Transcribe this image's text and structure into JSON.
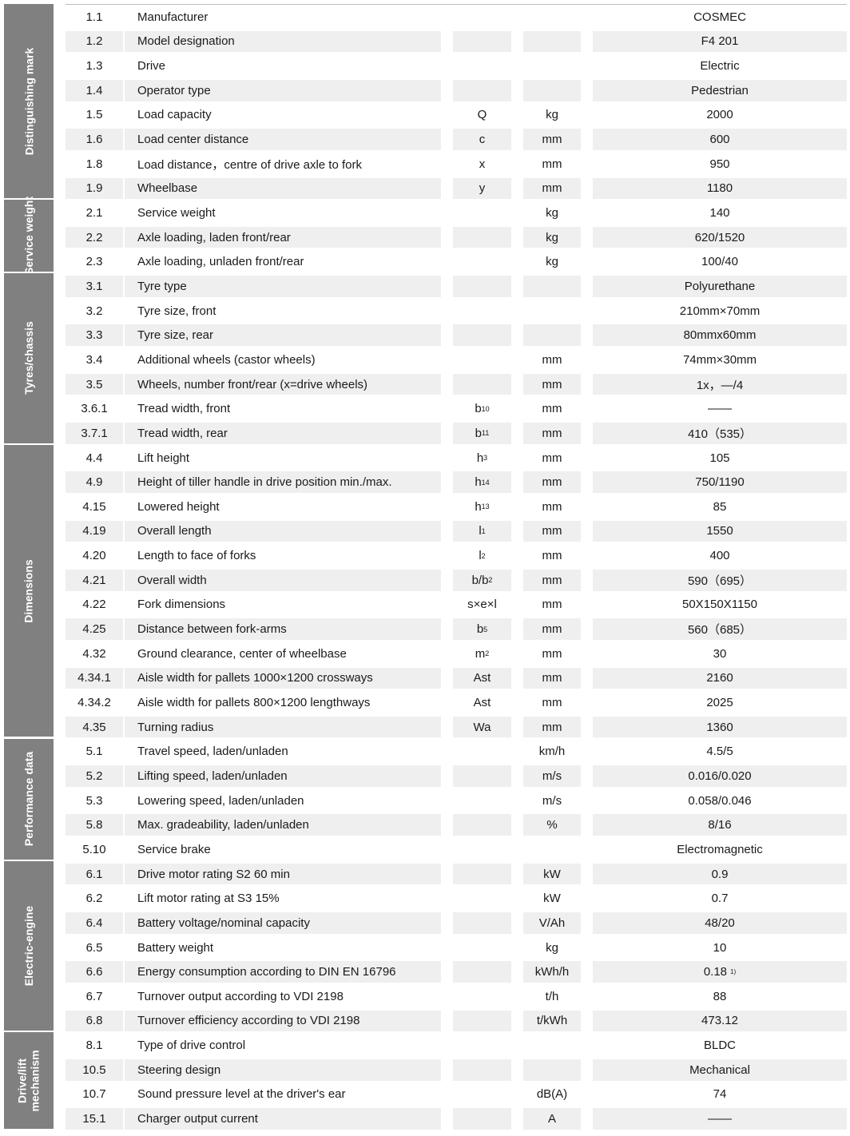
{
  "groups": [
    {
      "label": "Distinguishing mark",
      "rows": 8
    },
    {
      "label": "Service weight",
      "rows": 3
    },
    {
      "label": "Tyres/chassis",
      "rows": 7
    },
    {
      "label": "Dimensions",
      "rows": 12
    },
    {
      "label": "Performance data",
      "rows": 5
    },
    {
      "label": "Electric-engine",
      "rows": 7
    },
    {
      "label": "Drive/lift mechanism",
      "rows": 4
    }
  ],
  "rows": [
    {
      "no": "1.1",
      "desc": "Manufacturer",
      "sym": "",
      "sub": "",
      "unit": "",
      "value": "COSMEC"
    },
    {
      "no": "1.2",
      "desc": "Model designation",
      "sym": "",
      "sub": "",
      "unit": "",
      "value": "F4 201"
    },
    {
      "no": "1.3",
      "desc": "Drive",
      "sym": "",
      "sub": "",
      "unit": "",
      "value": "Electric"
    },
    {
      "no": "1.4",
      "desc": "Operator type",
      "sym": "",
      "sub": "",
      "unit": "",
      "value": "Pedestrian"
    },
    {
      "no": "1.5",
      "desc": "Load capacity",
      "sym": "Q",
      "sub": "",
      "unit": "kg",
      "value": "2000"
    },
    {
      "no": "1.6",
      "desc": "Load center distance",
      "sym": "c",
      "sub": "",
      "unit": "mm",
      "value": "600"
    },
    {
      "no": "1.8",
      "desc": "Load distance，centre of drive axle to fork",
      "sym": "x",
      "sub": "",
      "unit": "mm",
      "value": "950"
    },
    {
      "no": "1.9",
      "desc": "Wheelbase",
      "sym": "y",
      "sub": "",
      "unit": "mm",
      "value": "1180"
    },
    {
      "no": "2.1",
      "desc": "Service weight",
      "sym": "",
      "sub": "",
      "unit": "kg",
      "value": "140"
    },
    {
      "no": "2.2",
      "desc": "Axle loading, laden front/rear",
      "sym": "",
      "sub": "",
      "unit": "kg",
      "value": "620/1520"
    },
    {
      "no": "2.3",
      "desc": "Axle loading, unladen front/rear",
      "sym": "",
      "sub": "",
      "unit": "kg",
      "value": "100/40"
    },
    {
      "no": "3.1",
      "desc": "Tyre type",
      "sym": "",
      "sub": "",
      "unit": "",
      "value": "Polyurethane"
    },
    {
      "no": "3.2",
      "desc": "Tyre size, front",
      "sym": "",
      "sub": "",
      "unit": "",
      "value": "210mm×70mm"
    },
    {
      "no": "3.3",
      "desc": "Tyre size, rear",
      "sym": "",
      "sub": "",
      "unit": "",
      "value": "80mmx60mm"
    },
    {
      "no": "3.4",
      "desc": "Additional wheels (castor wheels)",
      "sym": "",
      "sub": "",
      "unit": "mm",
      "value": "74mm×30mm"
    },
    {
      "no": "3.5",
      "desc": "Wheels, number front/rear (x=drive wheels)",
      "sym": "",
      "sub": "",
      "unit": "mm",
      "value": "1x，—/4"
    },
    {
      "no": "3.6.1",
      "desc": "Tread width, front",
      "sym": "b",
      "sub": "10",
      "unit": "mm",
      "value": "——"
    },
    {
      "no": "3.7.1",
      "desc": "Tread width, rear",
      "sym": "b",
      "sub": "11",
      "unit": "mm",
      "value": "410（535）"
    },
    {
      "no": "4.4",
      "desc": "Lift height",
      "sym": "h",
      "sub": "3",
      "unit": "mm",
      "value": "105"
    },
    {
      "no": "4.9",
      "desc": "Height of tiller handle in drive position min./max.",
      "sym": "h",
      "sub": "14",
      "unit": "mm",
      "value": "750/1190"
    },
    {
      "no": "4.15",
      "desc": "Lowered height",
      "sym": "h",
      "sub": "13",
      "unit": "mm",
      "value": "85"
    },
    {
      "no": "4.19",
      "desc": "Overall length",
      "sym": "l",
      "sub": "1",
      "unit": "mm",
      "value": "1550"
    },
    {
      "no": "4.20",
      "desc": "Length to face of forks",
      "sym": "l",
      "sub": "2",
      "unit": "mm",
      "value": "400"
    },
    {
      "no": "4.21",
      "desc": "Overall width",
      "sym": "b/b",
      "sub": "2",
      "unit": "mm",
      "value": "590（695）"
    },
    {
      "no": "4.22",
      "desc": "Fork dimensions",
      "sym": "s×e×l",
      "sub": "",
      "unit": "mm",
      "value": "50X150X1150"
    },
    {
      "no": "4.25",
      "desc": "Distance between fork-arms",
      "sym": "b",
      "sub": "5",
      "unit": "mm",
      "value": "560（685）"
    },
    {
      "no": "4.32",
      "desc": "Ground clearance, center of wheelbase",
      "sym": "m",
      "sub": "2",
      "unit": "mm",
      "value": "30"
    },
    {
      "no": "4.34.1",
      "desc": "Aisle width for pallets 1000×1200 crossways",
      "sym": "Ast",
      "sub": "",
      "unit": "mm",
      "value": "2160"
    },
    {
      "no": "4.34.2",
      "desc": "Aisle width for pallets 800×1200 lengthways",
      "sym": "Ast",
      "sub": "",
      "unit": "mm",
      "value": "2025"
    },
    {
      "no": "4.35",
      "desc": "Turning radius",
      "sym": "Wa",
      "sub": "",
      "unit": "mm",
      "value": "1360"
    },
    {
      "no": "5.1",
      "desc": "Travel speed, laden/unladen",
      "sym": "",
      "sub": "",
      "unit": "km/h",
      "value": "4.5/5"
    },
    {
      "no": "5.2",
      "desc": "Lifting speed, laden/unladen",
      "sym": "",
      "sub": "",
      "unit": "m/s",
      "value": "0.016/0.020"
    },
    {
      "no": "5.3",
      "desc": "Lowering speed, laden/unladen",
      "sym": "",
      "sub": "",
      "unit": "m/s",
      "value": "0.058/0.046"
    },
    {
      "no": "5.8",
      "desc": "Max. gradeability, laden/unladen",
      "sym": "",
      "sub": "",
      "unit": "%",
      "value": "8/16"
    },
    {
      "no": "5.10",
      "desc": "Service brake",
      "sym": "",
      "sub": "",
      "unit": "",
      "value": "Electromagnetic"
    },
    {
      "no": "6.1",
      "desc": "Drive motor rating S2 60 min",
      "sym": "",
      "sub": "",
      "unit": "kW",
      "value": "0.9"
    },
    {
      "no": "6.2",
      "desc": "Lift motor rating at S3 15%",
      "sym": "",
      "sub": "",
      "unit": "kW",
      "value": "0.7"
    },
    {
      "no": "6.4",
      "desc": "Battery voltage/nominal capacity",
      "sym": "",
      "sub": "",
      "unit": "V/Ah",
      "value": "48/20"
    },
    {
      "no": "6.5",
      "desc": "Battery weight",
      "sym": "",
      "sub": "",
      "unit": "kg",
      "value": "10"
    },
    {
      "no": "6.6",
      "desc": "Energy consumption according to DIN EN 16796",
      "sym": "",
      "sub": "",
      "unit": "kWh/h",
      "value": "0.18",
      "note": "1)"
    },
    {
      "no": "6.7",
      "desc": "Turnover output according to VDI 2198",
      "sym": "",
      "sub": "",
      "unit": "t/h",
      "value": "88"
    },
    {
      "no": "6.8",
      "desc": "Turnover efficiency according to VDI 2198",
      "sym": "",
      "sub": "",
      "unit": "t/kWh",
      "value": "473.12"
    },
    {
      "no": "8.1",
      "desc": "Type of drive control",
      "sym": "",
      "sub": "",
      "unit": "",
      "value": "BLDC"
    },
    {
      "no": "10.5",
      "desc": "Steering design",
      "sym": "",
      "sub": "",
      "unit": "",
      "value": "Mechanical"
    },
    {
      "no": "10.7",
      "desc": "Sound pressure level at the driver's ear",
      "sym": "",
      "sub": "",
      "unit": "dB(A)",
      "value": "74"
    },
    {
      "no": "15.1",
      "desc": "Charger output current",
      "sym": "",
      "sub": "",
      "unit": "A",
      "value": "——"
    }
  ]
}
